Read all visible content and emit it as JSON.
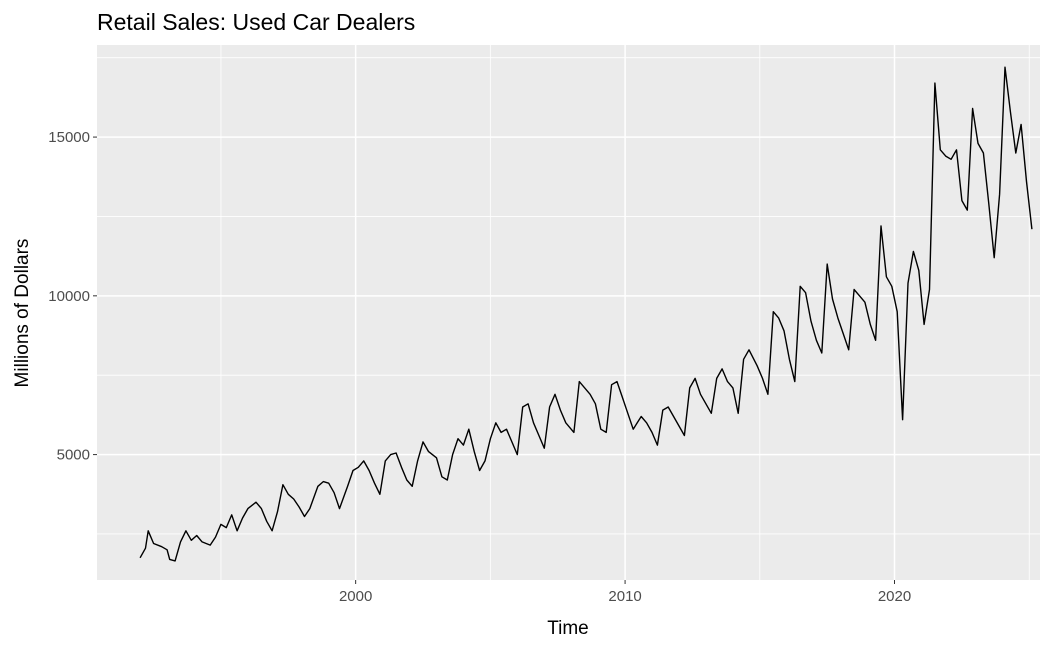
{
  "chart_data": {
    "type": "line",
    "title": "Retail Sales: Used Car Dealers",
    "xlabel": "Time",
    "ylabel": "Millions of Dollars",
    "xlim": [
      1990.4,
      2025.4
    ],
    "ylim": [
      1050,
      17900
    ],
    "x_ticks": [
      {
        "value": 2000,
        "label": "2000"
      },
      {
        "value": 2010,
        "label": "2010"
      },
      {
        "value": 2020,
        "label": "2020"
      }
    ],
    "y_ticks": [
      {
        "value": 5000,
        "label": "5000"
      },
      {
        "value": 10000,
        "label": "10000"
      },
      {
        "value": 15000,
        "label": "15000"
      }
    ],
    "x_minor": [
      1995,
      2005,
      2015,
      2025
    ],
    "y_minor": [
      2500,
      7500,
      12500,
      17500
    ],
    "grid": true,
    "background": "#ebebeb",
    "series": [
      {
        "color": "#000000",
        "points": [
          [
            1992.0,
            1750
          ],
          [
            1992.2,
            2050
          ],
          [
            1992.3,
            2600
          ],
          [
            1992.5,
            2200
          ],
          [
            1992.8,
            2100
          ],
          [
            1993.0,
            2000
          ],
          [
            1993.1,
            1700
          ],
          [
            1993.3,
            1650
          ],
          [
            1993.5,
            2250
          ],
          [
            1993.7,
            2600
          ],
          [
            1993.9,
            2300
          ],
          [
            1994.1,
            2450
          ],
          [
            1994.3,
            2250
          ],
          [
            1994.6,
            2150
          ],
          [
            1994.8,
            2400
          ],
          [
            1995.0,
            2800
          ],
          [
            1995.2,
            2700
          ],
          [
            1995.4,
            3100
          ],
          [
            1995.6,
            2600
          ],
          [
            1995.8,
            3000
          ],
          [
            1996.0,
            3300
          ],
          [
            1996.3,
            3500
          ],
          [
            1996.5,
            3300
          ],
          [
            1996.7,
            2900
          ],
          [
            1996.9,
            2600
          ],
          [
            1997.1,
            3200
          ],
          [
            1997.3,
            4050
          ],
          [
            1997.5,
            3750
          ],
          [
            1997.7,
            3600
          ],
          [
            1997.9,
            3350
          ],
          [
            1998.1,
            3050
          ],
          [
            1998.3,
            3300
          ],
          [
            1998.6,
            4000
          ],
          [
            1998.8,
            4150
          ],
          [
            1999.0,
            4100
          ],
          [
            1999.2,
            3800
          ],
          [
            1999.4,
            3300
          ],
          [
            1999.7,
            4000
          ],
          [
            1999.9,
            4500
          ],
          [
            2000.1,
            4600
          ],
          [
            2000.3,
            4800
          ],
          [
            2000.5,
            4500
          ],
          [
            2000.7,
            4100
          ],
          [
            2000.9,
            3750
          ],
          [
            2001.1,
            4800
          ],
          [
            2001.3,
            5000
          ],
          [
            2001.5,
            5050
          ],
          [
            2001.7,
            4600
          ],
          [
            2001.9,
            4200
          ],
          [
            2002.1,
            4000
          ],
          [
            2002.3,
            4800
          ],
          [
            2002.5,
            5400
          ],
          [
            2002.7,
            5100
          ],
          [
            2003.0,
            4900
          ],
          [
            2003.2,
            4300
          ],
          [
            2003.4,
            4200
          ],
          [
            2003.6,
            5000
          ],
          [
            2003.8,
            5500
          ],
          [
            2004.0,
            5300
          ],
          [
            2004.2,
            5800
          ],
          [
            2004.4,
            5100
          ],
          [
            2004.6,
            4500
          ],
          [
            2004.8,
            4800
          ],
          [
            2005.0,
            5500
          ],
          [
            2005.2,
            6000
          ],
          [
            2005.4,
            5700
          ],
          [
            2005.6,
            5800
          ],
          [
            2005.8,
            5400
          ],
          [
            2006.0,
            5000
          ],
          [
            2006.2,
            6500
          ],
          [
            2006.4,
            6600
          ],
          [
            2006.6,
            6000
          ],
          [
            2006.8,
            5600
          ],
          [
            2007.0,
            5200
          ],
          [
            2007.2,
            6500
          ],
          [
            2007.4,
            6900
          ],
          [
            2007.6,
            6400
          ],
          [
            2007.8,
            6000
          ],
          [
            2008.1,
            5700
          ],
          [
            2008.3,
            7300
          ],
          [
            2008.5,
            7100
          ],
          [
            2008.7,
            6900
          ],
          [
            2008.9,
            6600
          ],
          [
            2009.1,
            5800
          ],
          [
            2009.3,
            5700
          ],
          [
            2009.5,
            7200
          ],
          [
            2009.7,
            7300
          ],
          [
            2009.9,
            6800
          ],
          [
            2010.1,
            6300
          ],
          [
            2010.3,
            5800
          ],
          [
            2010.6,
            6200
          ],
          [
            2010.8,
            6000
          ],
          [
            2011.0,
            5700
          ],
          [
            2011.2,
            5300
          ],
          [
            2011.4,
            6400
          ],
          [
            2011.6,
            6500
          ],
          [
            2011.8,
            6200
          ],
          [
            2012.0,
            5900
          ],
          [
            2012.2,
            5600
          ],
          [
            2012.4,
            7100
          ],
          [
            2012.6,
            7400
          ],
          [
            2012.8,
            6900
          ],
          [
            2013.0,
            6600
          ],
          [
            2013.2,
            6300
          ],
          [
            2013.4,
            7400
          ],
          [
            2013.6,
            7700
          ],
          [
            2013.8,
            7300
          ],
          [
            2014.0,
            7100
          ],
          [
            2014.2,
            6300
          ],
          [
            2014.4,
            8000
          ],
          [
            2014.6,
            8300
          ],
          [
            2014.9,
            7800
          ],
          [
            2015.1,
            7400
          ],
          [
            2015.3,
            6900
          ],
          [
            2015.5,
            9500
          ],
          [
            2015.7,
            9300
          ],
          [
            2015.9,
            8900
          ],
          [
            2016.1,
            8000
          ],
          [
            2016.3,
            7300
          ],
          [
            2016.5,
            10300
          ],
          [
            2016.7,
            10100
          ],
          [
            2016.9,
            9200
          ],
          [
            2017.1,
            8600
          ],
          [
            2017.3,
            8200
          ],
          [
            2017.5,
            11000
          ],
          [
            2017.7,
            9900
          ],
          [
            2017.9,
            9300
          ],
          [
            2018.1,
            8800
          ],
          [
            2018.3,
            8300
          ],
          [
            2018.5,
            10200
          ],
          [
            2018.7,
            10000
          ],
          [
            2018.9,
            9800
          ],
          [
            2019.1,
            9100
          ],
          [
            2019.3,
            8600
          ],
          [
            2019.5,
            12200
          ],
          [
            2019.7,
            10600
          ],
          [
            2019.9,
            10300
          ],
          [
            2020.1,
            9500
          ],
          [
            2020.3,
            6100
          ],
          [
            2020.5,
            10400
          ],
          [
            2020.7,
            11400
          ],
          [
            2020.9,
            10800
          ],
          [
            2021.1,
            9100
          ],
          [
            2021.3,
            10200
          ],
          [
            2021.5,
            16700
          ],
          [
            2021.7,
            14600
          ],
          [
            2021.9,
            14400
          ],
          [
            2022.1,
            14300
          ],
          [
            2022.3,
            14600
          ],
          [
            2022.5,
            13000
          ],
          [
            2022.7,
            12700
          ],
          [
            2022.9,
            15900
          ],
          [
            2023.1,
            14800
          ],
          [
            2023.3,
            14500
          ],
          [
            2023.5,
            12900
          ],
          [
            2023.7,
            11200
          ],
          [
            2023.9,
            13200
          ],
          [
            2024.1,
            17200
          ],
          [
            2024.3,
            15800
          ],
          [
            2024.5,
            14500
          ],
          [
            2024.7,
            15400
          ],
          [
            2024.9,
            13600
          ],
          [
            2025.1,
            12100
          ]
        ]
      }
    ]
  }
}
